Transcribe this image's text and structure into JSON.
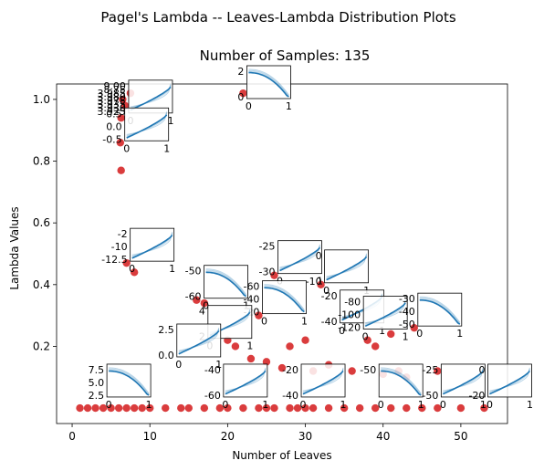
{
  "figure": {
    "suptitle": "Pagel's Lambda -- Leaves-Lambda Distribution Plots"
  },
  "chart_data": {
    "type": "scatter",
    "title": "Number of Samples: 135",
    "xlabel": "Number of Leaves",
    "ylabel": "Lambda Values",
    "xlim": [
      -2,
      56
    ],
    "ylim": [
      -0.05,
      1.05
    ],
    "xticks": [
      "0",
      "10",
      "20",
      "30",
      "40",
      "50"
    ],
    "yticks": [
      "0.2",
      "0.4",
      "0.6",
      "0.8",
      "1.0"
    ],
    "xtick_values": [
      0,
      10,
      20,
      30,
      40,
      50
    ],
    "ytick_values": [
      0.2,
      0.4,
      0.6,
      0.8,
      1.0
    ],
    "grid": false,
    "marker_color": "#d62728",
    "line_color": "#1f77b4",
    "points": [
      {
        "x": 7.5,
        "y": 1.02
      },
      {
        "x": 6.5,
        "y": 1.0
      },
      {
        "x": 6.8,
        "y": 0.98
      },
      {
        "x": 22,
        "y": 1.02
      },
      {
        "x": 6.3,
        "y": 0.94
      },
      {
        "x": 6.2,
        "y": 0.86
      },
      {
        "x": 6.3,
        "y": 0.77
      },
      {
        "x": 7,
        "y": 0.47
      },
      {
        "x": 8,
        "y": 0.44
      },
      {
        "x": 16,
        "y": 0.35
      },
      {
        "x": 17,
        "y": 0.34
      },
      {
        "x": 26,
        "y": 0.43
      },
      {
        "x": 32,
        "y": 0.4
      },
      {
        "x": 24,
        "y": 0.3
      },
      {
        "x": 20,
        "y": 0.22
      },
      {
        "x": 21,
        "y": 0.2
      },
      {
        "x": 28,
        "y": 0.2
      },
      {
        "x": 30,
        "y": 0.22
      },
      {
        "x": 38,
        "y": 0.22
      },
      {
        "x": 39,
        "y": 0.2
      },
      {
        "x": 41,
        "y": 0.24
      },
      {
        "x": 44,
        "y": 0.26
      },
      {
        "x": 23,
        "y": 0.16
      },
      {
        "x": 25,
        "y": 0.15
      },
      {
        "x": 27,
        "y": 0.13
      },
      {
        "x": 31,
        "y": 0.12
      },
      {
        "x": 33,
        "y": 0.14
      },
      {
        "x": 36,
        "y": 0.12
      },
      {
        "x": 40,
        "y": 0.11
      },
      {
        "x": 42,
        "y": 0.12
      },
      {
        "x": 43,
        "y": 0.1
      },
      {
        "x": 47,
        "y": 0.12
      },
      {
        "x": 1,
        "y": 0.0
      },
      {
        "x": 2,
        "y": 0.0
      },
      {
        "x": 3,
        "y": 0.0
      },
      {
        "x": 4,
        "y": 0.0
      },
      {
        "x": 5,
        "y": 0.0
      },
      {
        "x": 6,
        "y": 0.0
      },
      {
        "x": 7,
        "y": 0.0
      },
      {
        "x": 8,
        "y": 0.0
      },
      {
        "x": 9,
        "y": 0.0
      },
      {
        "x": 10,
        "y": 0.0
      },
      {
        "x": 12,
        "y": 0.0
      },
      {
        "x": 14,
        "y": 0.0
      },
      {
        "x": 15,
        "y": 0.0
      },
      {
        "x": 17,
        "y": 0.0
      },
      {
        "x": 19,
        "y": 0.0
      },
      {
        "x": 20,
        "y": 0.0
      },
      {
        "x": 22,
        "y": 0.0
      },
      {
        "x": 24,
        "y": 0.0
      },
      {
        "x": 26,
        "y": 0.0
      },
      {
        "x": 28,
        "y": 0.0
      },
      {
        "x": 30,
        "y": 0.0
      },
      {
        "x": 33,
        "y": 0.0
      },
      {
        "x": 35,
        "y": 0.0
      },
      {
        "x": 37,
        "y": 0.0
      },
      {
        "x": 39,
        "y": 0.0
      },
      {
        "x": 41,
        "y": 0.0
      },
      {
        "x": 43,
        "y": 0.0
      },
      {
        "x": 45,
        "y": 0.0
      },
      {
        "x": 47,
        "y": 0.0
      },
      {
        "x": 50,
        "y": 0.0
      },
      {
        "x": 53,
        "y": 0.0
      },
      {
        "x": 25,
        "y": 0.0
      },
      {
        "x": 29,
        "y": 0.0
      },
      {
        "x": 31,
        "y": 0.0
      }
    ],
    "inset_plots": [
      {
        "x": 6.8,
        "y": 0.95,
        "ticks_y": [
          "9.00",
          "8.75",
          "3.985",
          "3.980",
          "3.975",
          "3.935",
          "3.930",
          "3.925"
        ],
        "ticks_x": [
          "0",
          "1"
        ]
      },
      {
        "x": 22,
        "y": 1.02,
        "ticks_y": [
          "2",
          "0"
        ],
        "ticks_x": [
          "0",
          "1"
        ]
      },
      {
        "x": 6.3,
        "y": 0.86,
        "ticks_y": [
          "0.5",
          "0.0",
          "-0.5"
        ],
        "ticks_x": [
          "0",
          "1"
        ]
      },
      {
        "x": 7,
        "y": 0.47,
        "ticks_y": [
          "-2",
          "-10",
          "-12.5"
        ],
        "ticks_x": [
          "0",
          "1"
        ]
      },
      {
        "x": 16.5,
        "y": 0.35,
        "ticks_y": [
          "-50",
          "-60"
        ],
        "ticks_x": [
          "0",
          "1"
        ]
      },
      {
        "x": 26,
        "y": 0.43,
        "ticks_y": [
          "-25",
          "-30"
        ],
        "ticks_x": [
          "0",
          "1"
        ]
      },
      {
        "x": 32,
        "y": 0.4,
        "ticks_y": [
          "0",
          "-10"
        ],
        "ticks_x": [
          "0",
          "1"
        ]
      },
      {
        "x": 24,
        "y": 0.3,
        "ticks_y": [
          "-60",
          "-40",
          "-20"
        ],
        "ticks_x": [
          "0",
          "1"
        ]
      },
      {
        "x": 34,
        "y": 0.27,
        "ticks_y": [
          "-20",
          "-40"
        ],
        "ticks_x": [
          "0",
          "1"
        ]
      },
      {
        "x": 37,
        "y": 0.25,
        "ticks_y": [
          "-80",
          "-100",
          "-120"
        ],
        "ticks_x": [
          "0",
          "1"
        ]
      },
      {
        "x": 44,
        "y": 0.26,
        "ticks_y": [
          "-30",
          "-40",
          "-50"
        ],
        "ticks_x": [
          "0",
          "1"
        ]
      },
      {
        "x": 17,
        "y": 0.22,
        "ticks_y": [
          "4",
          "2"
        ],
        "ticks_x": [
          "0",
          "1"
        ]
      },
      {
        "x": 13,
        "y": 0.16,
        "ticks_y": [
          "2.5",
          "0.0"
        ],
        "ticks_x": [
          "0",
          "1"
        ]
      },
      {
        "x": 4,
        "y": 0.03,
        "ticks_y": [
          "7.5",
          "5.0",
          "2.5"
        ],
        "ticks_x": [
          "0",
          "1"
        ]
      },
      {
        "x": 19,
        "y": 0.03,
        "ticks_y": [
          "-40",
          "-60"
        ],
        "ticks_x": [
          "0",
          "1"
        ]
      },
      {
        "x": 29,
        "y": 0.03,
        "ticks_y": [
          "-20",
          "-40"
        ],
        "ticks_x": [
          "0",
          "1"
        ]
      },
      {
        "x": 39,
        "y": 0.03,
        "ticks_y": [
          "-50"
        ],
        "ticks_x": [
          "0",
          "1"
        ]
      },
      {
        "x": 47,
        "y": 0.03,
        "ticks_y": [
          "-25",
          "-50"
        ],
        "ticks_x": [
          "0",
          "1"
        ]
      },
      {
        "x": 53,
        "y": 0.03,
        "ticks_y": [
          "0",
          "-20"
        ],
        "ticks_x": [
          "0",
          "1"
        ]
      }
    ]
  }
}
